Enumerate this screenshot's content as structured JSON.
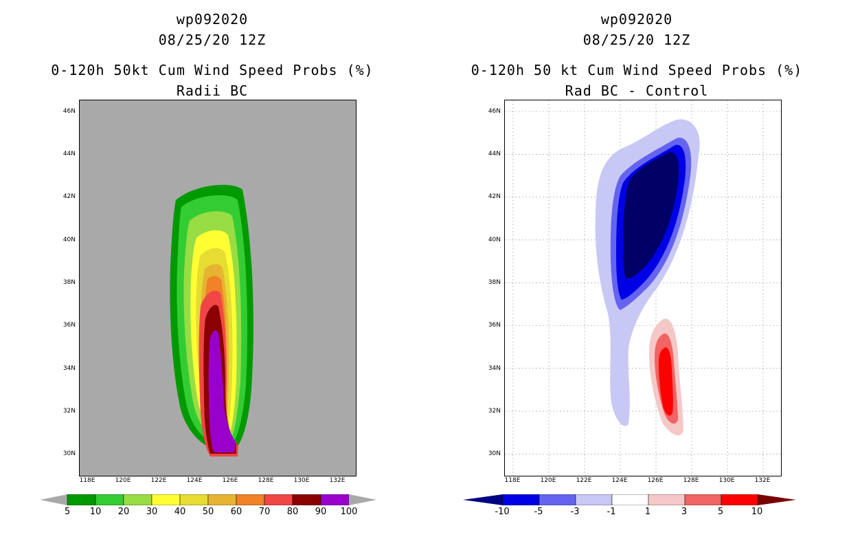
{
  "left_panel": {
    "storm_id": "wp092020",
    "datetime": "08/25/20 12Z",
    "product": "0-120h 50kt Cum Wind Speed Probs (%)",
    "subtitle": "Radii BC",
    "lat_ticks": [
      "46N",
      "44N",
      "42N",
      "40N",
      "38N",
      "36N",
      "34N",
      "32N",
      "30N"
    ],
    "lon_ticks": [
      "118E",
      "120E",
      "122E",
      "124E",
      "126E",
      "128E",
      "130E",
      "132E"
    ],
    "colorbar": {
      "labels": [
        "5",
        "10",
        "20",
        "30",
        "40",
        "50",
        "60",
        "70",
        "80",
        "90",
        "100"
      ],
      "colors": [
        "#009900",
        "#33cc33",
        "#99dd44",
        "#ffff33",
        "#e6dc32",
        "#e6b432",
        "#f08228",
        "#f04646",
        "#8b0000",
        "#9900cc"
      ],
      "arrow_color": "#a9a9a9"
    }
  },
  "right_panel": {
    "storm_id": "wp092020",
    "datetime": "08/25/20 12Z",
    "product": "0-120h 50 kt Cum Wind Speed Probs (%)",
    "subtitle": "Rad BC - Control",
    "lat_ticks": [
      "46N",
      "44N",
      "42N",
      "40N",
      "38N",
      "36N",
      "34N",
      "32N",
      "30N"
    ],
    "lon_ticks": [
      "118E",
      "120E",
      "122E",
      "124E",
      "126E",
      "128E",
      "130E",
      "132E"
    ],
    "colorbar": {
      "labels": [
        "-10",
        "-5",
        "-3",
        "-1",
        "1",
        "3",
        "5",
        "10"
      ],
      "colors": [
        "#0000e6",
        "#6464f0",
        "#c8c8f5",
        "#ffffff",
        "#f5c8c8",
        "#f06464",
        "#ff0000"
      ],
      "low_arrow_color": "#000080",
      "high_arrow_color": "#780000"
    }
  }
}
